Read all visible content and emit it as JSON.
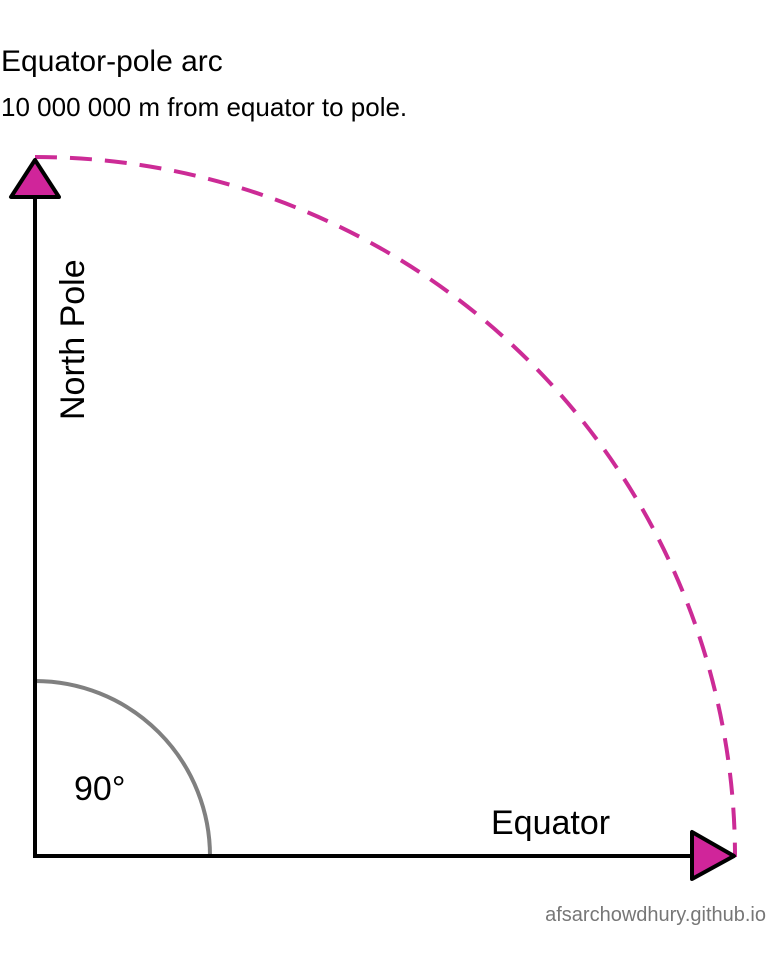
{
  "header": {
    "title": "Equator-pole arc",
    "subtitle": "10 000 000 m from equator to pole."
  },
  "diagram": {
    "vertical_axis_label": "North Pole",
    "horizontal_axis_label": "Equator",
    "angle_label": "90°",
    "colors": {
      "axis": "#000000",
      "arc": "#cc2b96",
      "arrowhead_fill": "#d0259a",
      "angle_arc": "#808080"
    }
  },
  "footer": {
    "credit": "afsarchowdhury.github.io"
  }
}
